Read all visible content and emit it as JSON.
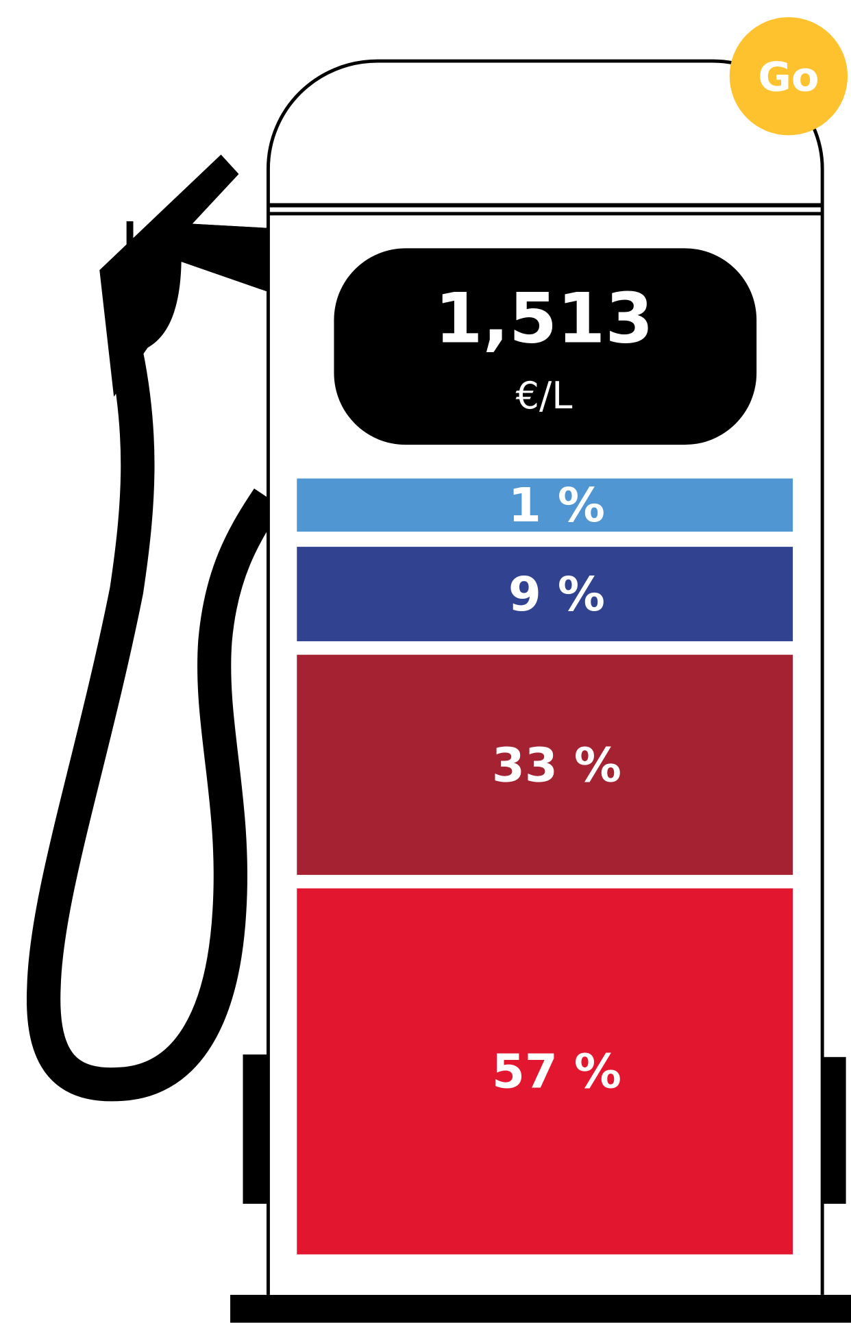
{
  "badge": "Go",
  "display": {
    "price": "1,513",
    "unit": "€/L"
  },
  "segments": [
    {
      "label": "1 %",
      "color": "#5096d2"
    },
    {
      "label": "9 %",
      "color": "#314290"
    },
    {
      "label": "33 %",
      "color": "#a52233"
    },
    {
      "label": "57 %",
      "color": "#e3162f"
    }
  ]
}
